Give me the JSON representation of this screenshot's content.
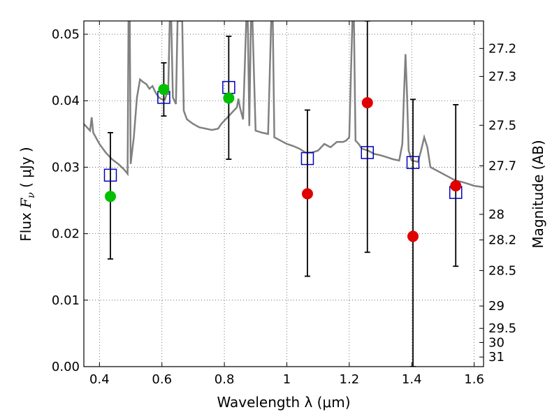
{
  "chart_data": {
    "type": "scatter",
    "xlabel": "Wavelength  λ (μm)",
    "ylabel": "Flux  F_ν  ( μJy )",
    "ylabel_parts": {
      "prefix": "Flux  ",
      "symbol": "F",
      "subscript": "ν",
      "suffix": "  ( μJy )"
    },
    "y2label": "Magnitude (AB)",
    "xlim": [
      0.35,
      1.63
    ],
    "ylim": [
      0.0,
      0.052
    ],
    "grid": true,
    "x_ticks": [
      {
        "value": 0.4,
        "label": "0.4"
      },
      {
        "value": 0.6,
        "label": "0.6"
      },
      {
        "value": 0.8,
        "label": "0.8"
      },
      {
        "value": 1.0,
        "label": "1"
      },
      {
        "value": 1.2,
        "label": "1.2"
      },
      {
        "value": 1.4,
        "label": "1.4"
      },
      {
        "value": 1.6,
        "label": "1.6"
      }
    ],
    "y_ticks": [
      {
        "value": 0.0,
        "label": "0.00"
      },
      {
        "value": 0.01,
        "label": "0.01"
      },
      {
        "value": 0.02,
        "label": "0.02"
      },
      {
        "value": 0.03,
        "label": "0.03"
      },
      {
        "value": 0.04,
        "label": "0.04"
      },
      {
        "value": 0.05,
        "label": "0.05"
      }
    ],
    "y2_ticks": [
      {
        "value": 27.2,
        "label": "27.2"
      },
      {
        "value": 27.3,
        "label": "27.3"
      },
      {
        "value": 27.5,
        "label": "27.5"
      },
      {
        "value": 27.7,
        "label": "27.7"
      },
      {
        "value": 28.0,
        "label": "28"
      },
      {
        "value": 28.2,
        "label": "28.2"
      },
      {
        "value": 28.5,
        "label": "28.5"
      },
      {
        "value": 29.0,
        "label": "29"
      },
      {
        "value": 29.5,
        "label": "29.5"
      },
      {
        "value": 30.0,
        "label": "30"
      },
      {
        "value": 31.0,
        "label": "31"
      }
    ],
    "colors": {
      "model": "#808080",
      "model_points": "#0000c0",
      "detected": "#00c000",
      "nondetected": "#e00000",
      "errorbar": "#000000",
      "grid": "#555555"
    },
    "model_spectrum": [
      [
        0.35,
        0.0365
      ],
      [
        0.37,
        0.0355
      ],
      [
        0.375,
        0.0375
      ],
      [
        0.38,
        0.0352
      ],
      [
        0.4,
        0.0335
      ],
      [
        0.42,
        0.0322
      ],
      [
        0.44,
        0.0312
      ],
      [
        0.46,
        0.0305
      ],
      [
        0.48,
        0.0296
      ],
      [
        0.49,
        0.029
      ],
      [
        0.493,
        0.052
      ],
      [
        0.497,
        0.052
      ],
      [
        0.5,
        0.0305
      ],
      [
        0.51,
        0.0345
      ],
      [
        0.52,
        0.0405
      ],
      [
        0.53,
        0.0432
      ],
      [
        0.54,
        0.0428
      ],
      [
        0.55,
        0.0425
      ],
      [
        0.56,
        0.0418
      ],
      [
        0.57,
        0.0422
      ],
      [
        0.58,
        0.0412
      ],
      [
        0.59,
        0.0405
      ],
      [
        0.6,
        0.0402
      ],
      [
        0.61,
        0.0402
      ],
      [
        0.615,
        0.041
      ],
      [
        0.62,
        0.041
      ],
      [
        0.625,
        0.052
      ],
      [
        0.63,
        0.052
      ],
      [
        0.635,
        0.0405
      ],
      [
        0.645,
        0.0395
      ],
      [
        0.65,
        0.052
      ],
      [
        0.655,
        0.052
      ],
      [
        0.66,
        0.052
      ],
      [
        0.665,
        0.052
      ],
      [
        0.67,
        0.0385
      ],
      [
        0.68,
        0.0372
      ],
      [
        0.7,
        0.0365
      ],
      [
        0.72,
        0.036
      ],
      [
        0.74,
        0.0358
      ],
      [
        0.76,
        0.0356
      ],
      [
        0.78,
        0.0358
      ],
      [
        0.79,
        0.0365
      ],
      [
        0.8,
        0.037
      ],
      [
        0.81,
        0.0375
      ],
      [
        0.82,
        0.038
      ],
      [
        0.83,
        0.0385
      ],
      [
        0.84,
        0.039
      ],
      [
        0.845,
        0.0403
      ],
      [
        0.85,
        0.039
      ],
      [
        0.86,
        0.0372
      ],
      [
        0.87,
        0.052
      ],
      [
        0.875,
        0.052
      ],
      [
        0.88,
        0.0362
      ],
      [
        0.885,
        0.052
      ],
      [
        0.89,
        0.052
      ],
      [
        0.9,
        0.0355
      ],
      [
        0.92,
        0.0352
      ],
      [
        0.94,
        0.035
      ],
      [
        0.95,
        0.052
      ],
      [
        0.955,
        0.052
      ],
      [
        0.96,
        0.0345
      ],
      [
        0.98,
        0.034
      ],
      [
        1.0,
        0.0335
      ],
      [
        1.02,
        0.0332
      ],
      [
        1.04,
        0.0328
      ],
      [
        1.06,
        0.0322
      ],
      [
        1.08,
        0.0322
      ],
      [
        1.1,
        0.0325
      ],
      [
        1.12,
        0.0335
      ],
      [
        1.14,
        0.033
      ],
      [
        1.16,
        0.0338
      ],
      [
        1.18,
        0.0338
      ],
      [
        1.19,
        0.034
      ],
      [
        1.2,
        0.0345
      ],
      [
        1.21,
        0.052
      ],
      [
        1.215,
        0.052
      ],
      [
        1.22,
        0.034
      ],
      [
        1.23,
        0.0335
      ],
      [
        1.24,
        0.0328
      ],
      [
        1.26,
        0.0325
      ],
      [
        1.28,
        0.032
      ],
      [
        1.3,
        0.0318
      ],
      [
        1.32,
        0.0315
      ],
      [
        1.34,
        0.0312
      ],
      [
        1.36,
        0.031
      ],
      [
        1.37,
        0.0335
      ],
      [
        1.375,
        0.0405
      ],
      [
        1.38,
        0.047
      ],
      [
        1.385,
        0.041
      ],
      [
        1.39,
        0.0325
      ],
      [
        1.4,
        0.031
      ],
      [
        1.42,
        0.0308
      ],
      [
        1.43,
        0.0325
      ],
      [
        1.44,
        0.0345
      ],
      [
        1.45,
        0.033
      ],
      [
        1.46,
        0.03
      ],
      [
        1.48,
        0.0295
      ],
      [
        1.5,
        0.029
      ],
      [
        1.52,
        0.0285
      ],
      [
        1.54,
        0.028
      ],
      [
        1.56,
        0.0278
      ],
      [
        1.58,
        0.0275
      ],
      [
        1.6,
        0.0272
      ],
      [
        1.63,
        0.027
      ]
    ],
    "model_points": [
      {
        "x": 0.435,
        "y": 0.0288
      },
      {
        "x": 0.606,
        "y": 0.0405
      },
      {
        "x": 0.814,
        "y": 0.042
      },
      {
        "x": 1.066,
        "y": 0.0313
      },
      {
        "x": 1.258,
        "y": 0.0322
      },
      {
        "x": 1.404,
        "y": 0.0307
      },
      {
        "x": 1.541,
        "y": 0.0262
      }
    ],
    "detected_points": [
      {
        "x": 0.435,
        "y": 0.0256,
        "ylow": 0.0162,
        "yhigh": 0.0352
      },
      {
        "x": 0.606,
        "y": 0.0417,
        "ylow": 0.0377,
        "yhigh": 0.0457
      },
      {
        "x": 0.814,
        "y": 0.0404,
        "ylow": 0.0312,
        "yhigh": 0.0497
      }
    ],
    "nondetected_points": [
      {
        "x": 1.066,
        "y": 0.026,
        "ylow": 0.0136,
        "yhigh": 0.0386
      },
      {
        "x": 1.258,
        "y": 0.0397,
        "ylow": 0.0172,
        "yhigh": 0.052
      },
      {
        "x": 1.404,
        "y": 0.0196,
        "ylow": 0.0,
        "yhigh": 0.0402
      },
      {
        "x": 1.541,
        "y": 0.0272,
        "ylow": 0.0151,
        "yhigh": 0.0394
      }
    ]
  }
}
